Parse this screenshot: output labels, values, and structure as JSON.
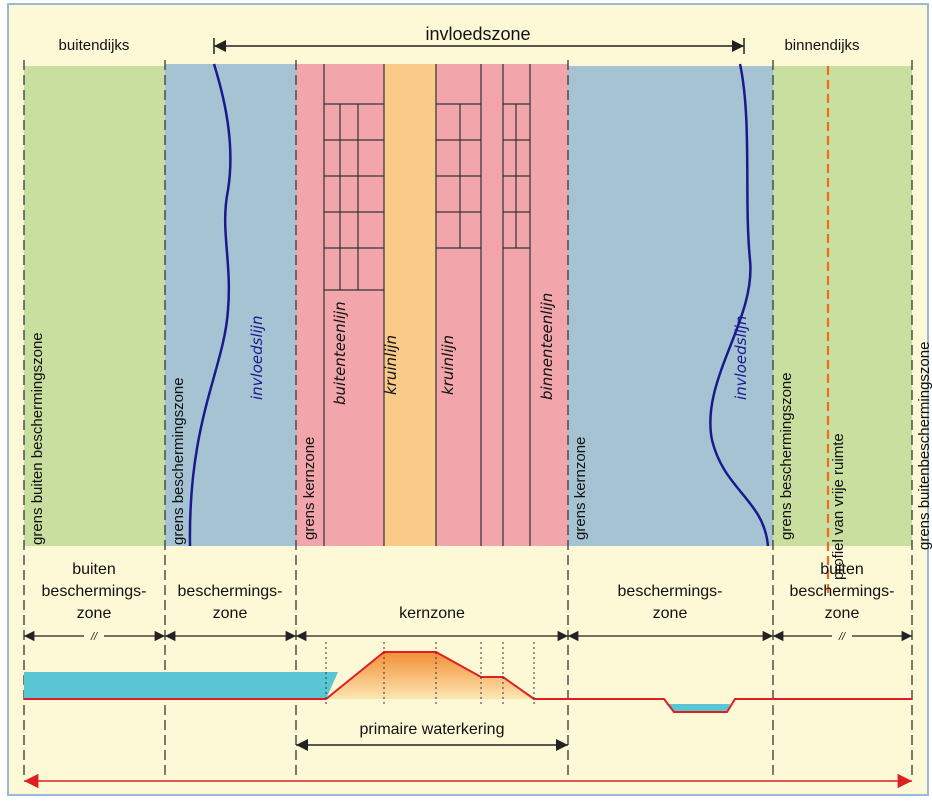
{
  "colors": {
    "background": "#fdf8d6",
    "frame": "#9ab8d9",
    "green": "#c8df9f",
    "blue_zone": "#a6c3d4",
    "pink": "#f2a6ab",
    "orange_crown": "#f9ca88",
    "influence_line": "#1a1a8c",
    "red_line": "#e02020",
    "water": "#58c6d3",
    "orange_dash": "#f36a1e",
    "dike_fill_top": "#f28f36",
    "dike_fill_bottom": "#fde6b3"
  },
  "labels": {
    "outside": "buitendijks",
    "influence_zone": "invloedszone",
    "inside": "binnendijks",
    "boundary_outer_protection_left": "grens buiten beschermingszone",
    "boundary_protection_left": "grens beschermingszone",
    "influence_line_left": "invloedslijn",
    "boundary_core_left": "grens kernzone",
    "outer_toe_line": "buitenteenlijn",
    "crown_line_1": "kruinlijn",
    "crown_line_2": "kruinlijn",
    "inner_toe_line": "binnenteenlijn",
    "boundary_core_right": "grens kernzone",
    "influence_line_right": "invloedslijn",
    "boundary_protection_right": "grens beschermingszone",
    "free_space_profile": "profiel van vrije ruimte",
    "boundary_outer_protection_right": "grens buitenbeschermingszone"
  },
  "zones": {
    "outer_protection_left": [
      "buiten",
      "beschermings-",
      "zone"
    ],
    "protection_left": [
      "beschermings-",
      "zone"
    ],
    "core": "kernzone",
    "protection_right": [
      "beschermings-",
      "zone"
    ],
    "outer_protection_right": [
      "buiten",
      "beschermings-",
      "zone"
    ],
    "break_mark": "//"
  },
  "primary_barrier": "primaire waterkering"
}
